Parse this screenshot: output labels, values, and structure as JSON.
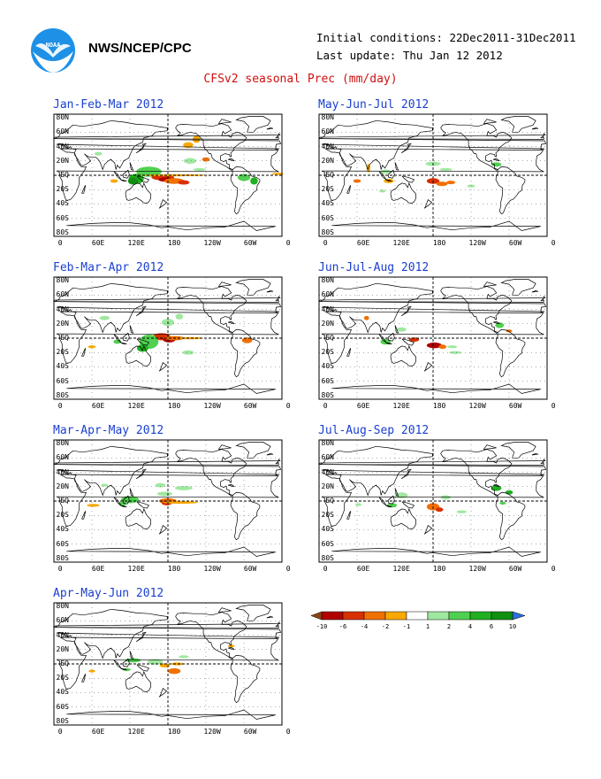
{
  "header": {
    "agency": "NWS/NCEP/CPC",
    "initial_conditions": "Initial conditions: 22Dec2011-31Dec2011",
    "last_update": "Last update: Thu Jan 12 2012",
    "title": "CFSv2 seasonal Prec (mm/day)"
  },
  "axes": {
    "lat_labels": [
      "80N",
      "60N",
      "40N",
      "20N",
      "EQ",
      "20S",
      "40S",
      "60S",
      "80S"
    ],
    "lon_labels": [
      "0",
      "60E",
      "120E",
      "180",
      "120W",
      "60W",
      "0"
    ]
  },
  "panels": [
    {
      "season": "Jan-Feb-Mar 2012"
    },
    {
      "season": "May-Jun-Jul 2012"
    },
    {
      "season": "Feb-Mar-Apr 2012"
    },
    {
      "season": "Jun-Jul-Aug 2012"
    },
    {
      "season": "Mar-Apr-May 2012"
    },
    {
      "season": "Jul-Aug-Sep 2012"
    },
    {
      "season": "Apr-May-Jun 2012"
    }
  ],
  "colorbar": {
    "labels": [
      "-10",
      "-6",
      "-4",
      "-2",
      "-1",
      "1",
      "2",
      "4",
      "6",
      "10"
    ],
    "colors": [
      "#8b4513",
      "#b00000",
      "#d83000",
      "#f07000",
      "#f8a800",
      "#ffffff",
      "#a0e8a0",
      "#50d050",
      "#20b020",
      "#109010",
      "#2a70e0"
    ]
  },
  "colors": {
    "title_red": "#d01010",
    "panel_title_blue": "#1a3fd0"
  }
}
